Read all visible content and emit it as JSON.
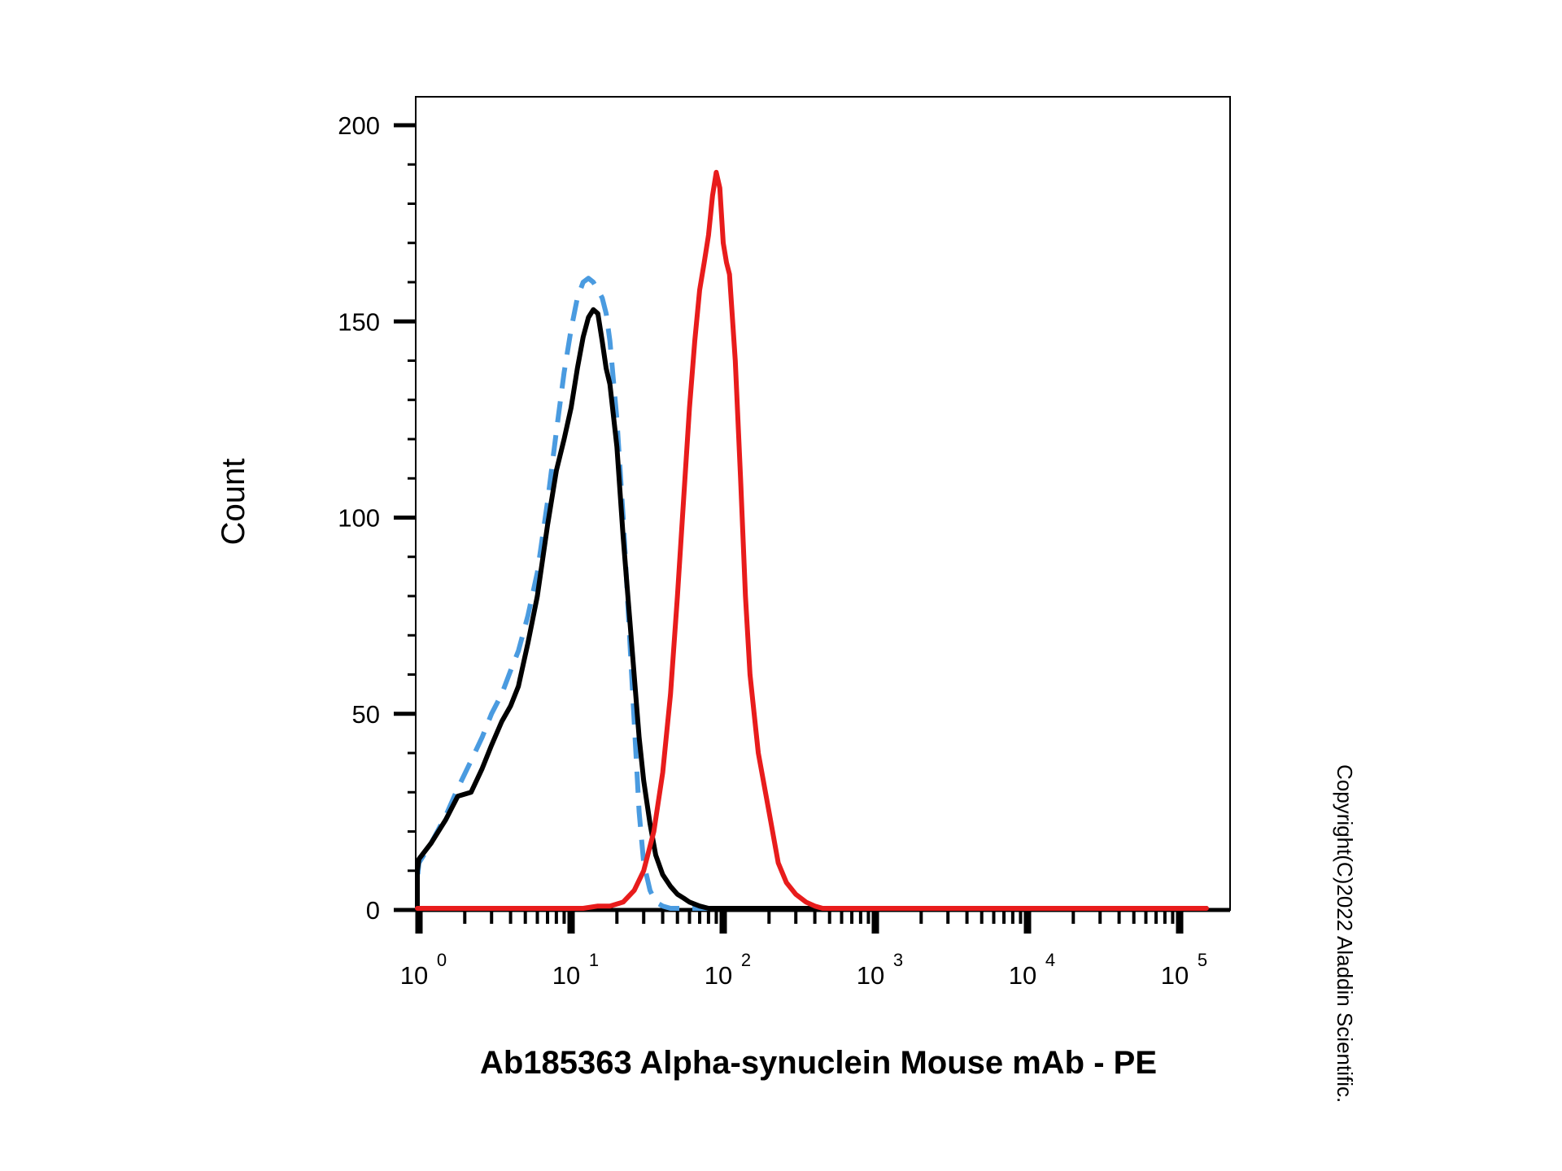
{
  "chart_data": {
    "type": "line",
    "title": "",
    "xlabel": "Ab185363 Alpha-synuclein Mouse mAb - PE",
    "ylabel": "Count",
    "xscale": "log",
    "xlim": [
      0.6,
      150000
    ],
    "ylim": [
      0,
      208
    ],
    "yticks": [
      "0",
      "50",
      "100",
      "150",
      "200"
    ],
    "xticks": [
      {
        "base": "10",
        "exp": "0"
      },
      {
        "base": "10",
        "exp": "1"
      },
      {
        "base": "10",
        "exp": "2"
      },
      {
        "base": "10",
        "exp": "3"
      },
      {
        "base": "10",
        "exp": "4"
      },
      {
        "base": "10",
        "exp": "5"
      }
    ],
    "grid": false,
    "legend": "none",
    "copyright": "Copyright(C)2022 Aladdin Scientific.",
    "series": [
      {
        "color": "#4a9be0",
        "style": "dashed",
        "x": [
          0.6,
          0.7,
          0.8,
          0.9,
          1.0,
          1.2,
          1.5,
          1.8,
          2.2,
          2.6,
          3.0,
          3.5,
          4.0,
          4.5,
          5.2,
          6.0,
          7.0,
          8.0,
          9.0,
          10.0,
          11.0,
          12.0,
          13.0,
          14.0,
          15.0,
          16.0,
          17.0,
          18.0,
          20.0,
          22.0,
          25.0,
          28.0,
          30.0,
          33.0,
          36.0,
          40.0,
          45.0,
          50.0,
          60.0,
          80.0,
          150.0,
          150000.0
        ],
        "y": [
          0,
          1,
          4,
          8,
          12,
          17,
          24,
          31,
          38,
          44,
          50,
          55,
          61,
          66,
          75,
          86,
          104,
          122,
          137,
          148,
          156,
          160,
          161,
          160,
          158,
          156,
          152,
          145,
          125,
          100,
          60,
          25,
          12,
          5,
          2,
          1,
          0,
          0,
          0,
          0,
          0,
          0
        ]
      },
      {
        "color": "#000000",
        "style": "solid",
        "x": [
          0.6,
          0.7,
          0.8,
          0.9,
          1.0,
          1.2,
          1.5,
          1.8,
          2.2,
          2.6,
          3.0,
          3.5,
          4.0,
          4.5,
          5.2,
          6.0,
          7.0,
          8.0,
          9.0,
          10.0,
          11.0,
          12.0,
          13.0,
          14.0,
          15.0,
          16.0,
          17.0,
          18.0,
          20.0,
          22.0,
          25.0,
          28.0,
          30.0,
          33.0,
          36.0,
          40.0,
          45.0,
          50.0,
          55.0,
          60.0,
          70.0,
          80.0,
          100.0,
          150.0,
          150000.0
        ],
        "y": [
          0,
          2,
          6,
          10,
          13,
          17,
          23,
          29,
          30,
          36,
          42,
          48,
          52,
          57,
          68,
          80,
          98,
          112,
          120,
          128,
          138,
          146,
          151,
          153,
          152,
          145,
          138,
          134,
          118,
          95,
          68,
          44,
          33,
          22,
          14,
          9,
          6,
          4,
          3,
          2,
          1,
          0,
          0,
          0,
          0
        ]
      },
      {
        "color": "#e81c1c",
        "style": "solid",
        "x": [
          0.6,
          5.0,
          8.0,
          10.0,
          12.0,
          15.0,
          18.0,
          22.0,
          26.0,
          30.0,
          35.0,
          40.0,
          45.0,
          50.0,
          55.0,
          60.0,
          65.0,
          70.0,
          75.0,
          80.0,
          85.0,
          90.0,
          95.0,
          100.0,
          105.0,
          110.0,
          120.0,
          130.0,
          140.0,
          150.0,
          170.0,
          200.0,
          230.0,
          260.0,
          300.0,
          350.0,
          400.0,
          450.0,
          500.0,
          150000.0
        ],
        "y": [
          0,
          0,
          0,
          0,
          0,
          1,
          1,
          2,
          5,
          10,
          20,
          35,
          55,
          80,
          105,
          128,
          145,
          158,
          165,
          172,
          182,
          188,
          184,
          170,
          165,
          162,
          140,
          110,
          80,
          60,
          40,
          25,
          12,
          7,
          4,
          2,
          1,
          0,
          0,
          0
        ]
      }
    ]
  }
}
